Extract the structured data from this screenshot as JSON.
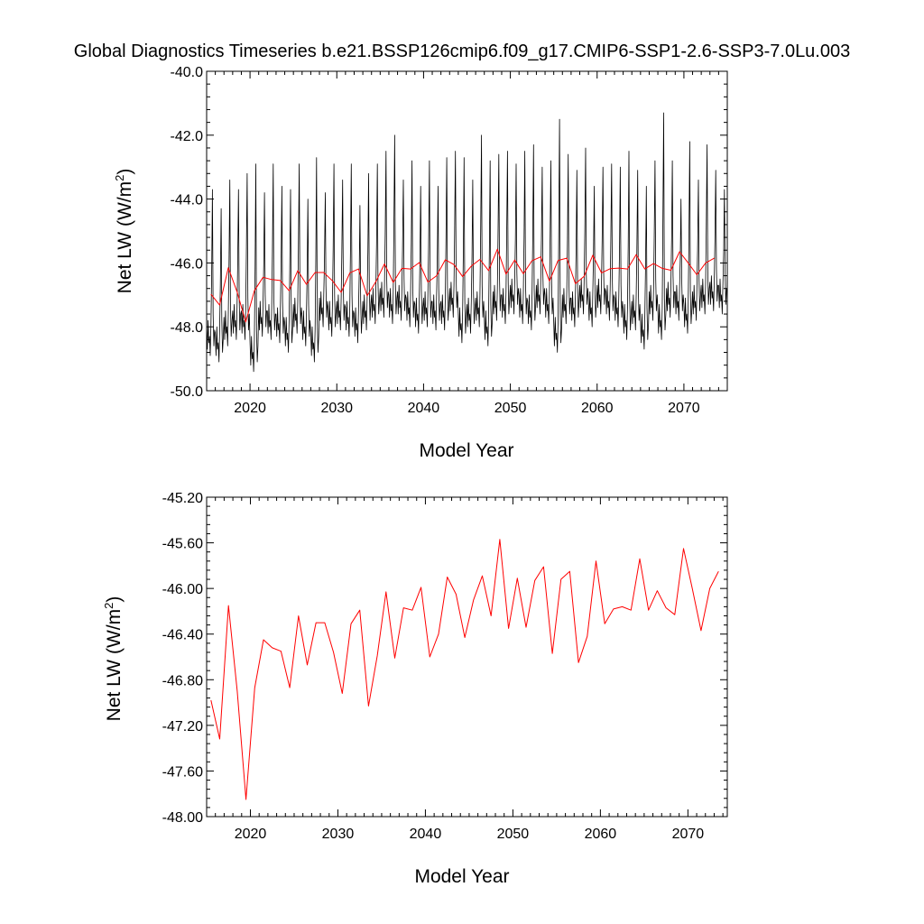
{
  "title": "Global Diagnostics Timeseries b.e21.BSSP126cmip6.f09_g17.CMIP6-SSP1-2.6-SSP3-7.0Lu.003",
  "colors": {
    "monthly": "#000000",
    "annual": "#ff0000",
    "frame": "#000000",
    "background": "#ffffff"
  },
  "chart_data": [
    {
      "type": "line",
      "panel": "top",
      "xlabel": "Model Year",
      "ylabel_main": "Net LW (W/m",
      "ylabel_sup": "2",
      "ylabel_close": ")",
      "xlim": [
        2015,
        2075
      ],
      "ylim": [
        -50.0,
        -40.0
      ],
      "x_ticks": [
        2020,
        2030,
        2040,
        2050,
        2060,
        2070
      ],
      "x_tick_labels": [
        "2020",
        "2030",
        "2040",
        "2050",
        "2060",
        "2070"
      ],
      "y_ticks": [
        -40.0,
        -42.0,
        -44.0,
        -46.0,
        -48.0,
        -50.0
      ],
      "y_tick_labels": [
        "-40.0",
        "-42.0",
        "-44.0",
        "-46.0",
        "-48.0",
        "-50.0"
      ],
      "series": [
        {
          "name": "monthly",
          "color": "#000000",
          "start_year": 2015,
          "peaks": [
            -43.7,
            -44.3,
            -43.4,
            -43.7,
            -43.2,
            -42.9,
            -43.8,
            -42.9,
            -43.6,
            -43.7,
            -42.9,
            -44.0,
            -42.7,
            -43.8,
            -42.9,
            -43.4,
            -42.9,
            -44.2,
            -43.2,
            -42.9,
            -42.5,
            -42.0,
            -43.4,
            -42.8,
            -43.6,
            -42.8,
            -43.6,
            -42.7,
            -42.5,
            -42.7,
            -43.4,
            -42.0,
            -42.8,
            -42.6,
            -42.5,
            -42.9,
            -42.5,
            -42.3,
            -43.0,
            -42.8,
            -41.5,
            -42.6,
            -43.1,
            -42.4,
            -43.6,
            -43.0,
            -42.9,
            -43.0,
            -42.5,
            -43.1,
            -43.6,
            -42.8,
            -41.3,
            -42.8,
            -44.0,
            -42.2,
            -43.4,
            -42.3,
            -43.1,
            -43.7
          ],
          "troughs": [
            -48.9,
            -49.1,
            -48.6,
            -48.4,
            -48.4,
            -49.4,
            -48.3,
            -48.4,
            -48.5,
            -48.8,
            -48.2,
            -48.6,
            -49.1,
            -48.0,
            -48.3,
            -48.1,
            -48.3,
            -48.5,
            -48.1,
            -47.9,
            -47.7,
            -47.9,
            -47.8,
            -48.0,
            -48.2,
            -48.0,
            -48.1,
            -48.1,
            -47.7,
            -48.5,
            -48.2,
            -48.0,
            -48.6,
            -47.8,
            -47.9,
            -47.6,
            -47.9,
            -48.1,
            -47.6,
            -47.9,
            -48.8,
            -47.9,
            -48.0,
            -47.6,
            -48.0,
            -47.6,
            -47.8,
            -48.0,
            -48.4,
            -48.1,
            -48.7,
            -47.8,
            -48.4,
            -47.7,
            -47.8,
            -48.2,
            -47.8,
            -47.6,
            -47.5,
            -47.6
          ]
        },
        {
          "name": "annual",
          "color": "#ff0000",
          "x": [
            2015.5,
            2016.5,
            2017.5,
            2018.5,
            2019.5,
            2020.5,
            2021.5,
            2022.5,
            2023.5,
            2024.5,
            2025.5,
            2026.5,
            2027.5,
            2028.5,
            2029.5,
            2030.5,
            2031.5,
            2032.5,
            2033.5,
            2034.5,
            2035.5,
            2036.5,
            2037.5,
            2038.5,
            2039.5,
            2040.5,
            2041.5,
            2042.5,
            2043.5,
            2044.5,
            2045.5,
            2046.5,
            2047.5,
            2048.5,
            2049.5,
            2050.5,
            2051.5,
            2052.5,
            2053.5,
            2054.5,
            2055.5,
            2056.5,
            2057.5,
            2058.5,
            2059.5,
            2060.5,
            2061.5,
            2062.5,
            2063.5,
            2064.5,
            2065.5,
            2066.5,
            2067.5,
            2068.5,
            2069.5,
            2070.5,
            2071.5,
            2072.5,
            2073.5
          ],
          "values": [
            -46.98,
            -47.32,
            -46.15,
            -46.9,
            -47.85,
            -46.87,
            -46.45,
            -46.52,
            -46.55,
            -46.87,
            -46.24,
            -46.67,
            -46.3,
            -46.3,
            -46.56,
            -46.92,
            -46.31,
            -46.19,
            -47.03,
            -46.59,
            -46.03,
            -46.61,
            -46.17,
            -46.19,
            -45.99,
            -46.6,
            -46.4,
            -45.9,
            -46.05,
            -46.43,
            -46.1,
            -45.89,
            -46.24,
            -45.57,
            -46.35,
            -45.91,
            -46.34,
            -45.93,
            -45.81,
            -46.57,
            -45.92,
            -45.85,
            -46.65,
            -46.42,
            -45.76,
            -46.31,
            -46.18,
            -46.16,
            -46.19,
            -45.74,
            -46.19,
            -46.02,
            -46.17,
            -46.23,
            -45.65,
            -46.0,
            -46.37,
            -46.0,
            -45.85
          ]
        }
      ]
    },
    {
      "type": "line",
      "panel": "bottom",
      "xlabel": "Model Year",
      "ylabel_main": "Net LW (W/m",
      "ylabel_sup": "2",
      "ylabel_close": ")",
      "xlim": [
        2015,
        2074.5
      ],
      "ylim": [
        -48.0,
        -45.2
      ],
      "x_ticks": [
        2020,
        2030,
        2040,
        2050,
        2060,
        2070
      ],
      "x_tick_labels": [
        "2020",
        "2030",
        "2040",
        "2050",
        "2060",
        "2070"
      ],
      "y_ticks": [
        -45.2,
        -45.6,
        -46.0,
        -46.4,
        -46.8,
        -47.2,
        -47.6,
        -48.0
      ],
      "y_tick_labels": [
        "-45.20",
        "-45.60",
        "-46.00",
        "-46.40",
        "-46.80",
        "-47.20",
        "-47.60",
        "-48.00"
      ],
      "series": [
        {
          "name": "annual",
          "color": "#ff0000",
          "x": [
            2015.5,
            2016.5,
            2017.5,
            2018.5,
            2019.5,
            2020.5,
            2021.5,
            2022.5,
            2023.5,
            2024.5,
            2025.5,
            2026.5,
            2027.5,
            2028.5,
            2029.5,
            2030.5,
            2031.5,
            2032.5,
            2033.5,
            2034.5,
            2035.5,
            2036.5,
            2037.5,
            2038.5,
            2039.5,
            2040.5,
            2041.5,
            2042.5,
            2043.5,
            2044.5,
            2045.5,
            2046.5,
            2047.5,
            2048.5,
            2049.5,
            2050.5,
            2051.5,
            2052.5,
            2053.5,
            2054.5,
            2055.5,
            2056.5,
            2057.5,
            2058.5,
            2059.5,
            2060.5,
            2061.5,
            2062.5,
            2063.5,
            2064.5,
            2065.5,
            2066.5,
            2067.5,
            2068.5,
            2069.5,
            2070.5,
            2071.5,
            2072.5,
            2073.5
          ],
          "values": [
            -46.98,
            -47.32,
            -46.15,
            -46.9,
            -47.85,
            -46.87,
            -46.45,
            -46.52,
            -46.55,
            -46.87,
            -46.24,
            -46.67,
            -46.3,
            -46.3,
            -46.56,
            -46.92,
            -46.31,
            -46.19,
            -47.03,
            -46.59,
            -46.03,
            -46.61,
            -46.17,
            -46.19,
            -45.99,
            -46.6,
            -46.4,
            -45.9,
            -46.05,
            -46.43,
            -46.1,
            -45.89,
            -46.24,
            -45.57,
            -46.35,
            -45.91,
            -46.34,
            -45.93,
            -45.81,
            -46.57,
            -45.92,
            -45.85,
            -46.65,
            -46.42,
            -45.76,
            -46.31,
            -46.18,
            -46.16,
            -46.19,
            -45.74,
            -46.19,
            -46.02,
            -46.17,
            -46.23,
            -45.65,
            -46.0,
            -46.37,
            -46.0,
            -45.85
          ]
        }
      ]
    }
  ]
}
